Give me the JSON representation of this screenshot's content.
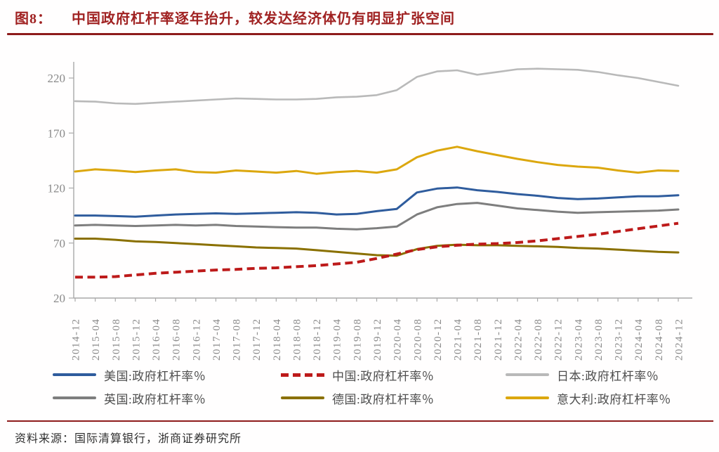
{
  "title": {
    "prefix": "图8：",
    "text": "中国政府杠杆率逐年抬升，较发达经济体仍有明显扩张空间"
  },
  "source": {
    "label": "资料来源：",
    "text": "国际清算银行，浙商证券研究所"
  },
  "colors": {
    "title_red": "#a02222",
    "rule_red": "#8e1b1b",
    "axis_gray": "#a9a9a9",
    "tick_label_gray": "#8a8a8a"
  },
  "chart_data": {
    "type": "line",
    "title": "",
    "xlabel": "",
    "ylabel": "",
    "ylim": [
      20,
      220
    ],
    "yticks": [
      20,
      70,
      120,
      170,
      220
    ],
    "grid": false,
    "legend_position": "bottom",
    "x": [
      "2014-12",
      "2015-04",
      "2015-08",
      "2015-12",
      "2016-04",
      "2016-08",
      "2016-12",
      "2017-04",
      "2017-08",
      "2017-12",
      "2018-04",
      "2018-08",
      "2018-12",
      "2019-04",
      "2019-08",
      "2019-12",
      "2020-04",
      "2020-08",
      "2020-12",
      "2021-04",
      "2021-08",
      "2021-12",
      "2022-04",
      "2022-08",
      "2022-12",
      "2023-04",
      "2023-08",
      "2023-12",
      "2024-04",
      "2024-08",
      "2024-12"
    ],
    "series": [
      {
        "key": "us",
        "name": "美国:政府杠杆率％",
        "color": "#2f5c9d",
        "dashed": false,
        "values": [
          95,
          95,
          94.5,
          94,
          95,
          96,
          96.5,
          97,
          96.5,
          97,
          97.5,
          98,
          97.5,
          96,
          96.5,
          99,
          101,
          116,
          119.5,
          120.5,
          118,
          116.5,
          114.5,
          113,
          111,
          110,
          110.5,
          111.5,
          112.5,
          112.5,
          113.5
        ]
      },
      {
        "key": "china",
        "name": "中国:政府杠杆率％",
        "color": "#bd1a1a",
        "dashed": true,
        "values": [
          39,
          39,
          39.5,
          41,
          42.5,
          43.5,
          44.5,
          45.5,
          46,
          47,
          47.5,
          48.5,
          49.5,
          51,
          52.5,
          56,
          60,
          64,
          66.5,
          68,
          69,
          69.5,
          70.5,
          72,
          74,
          76,
          78,
          80.5,
          83,
          85.5,
          88
        ]
      },
      {
        "key": "japan",
        "name": "日本:政府杠杆率％",
        "color": "#b9b9b9",
        "dashed": false,
        "values": [
          199,
          198.5,
          197,
          196.5,
          197.5,
          198.5,
          199.5,
          200.5,
          201.5,
          201,
          200.5,
          200.5,
          201,
          202.5,
          203,
          204.5,
          209,
          221,
          226,
          227,
          223,
          225.5,
          228,
          228.5,
          228,
          227.5,
          225.5,
          222.5,
          220,
          216.5,
          213
        ]
      },
      {
        "key": "uk",
        "name": "英国:政府杠杆率％",
        "color": "#7e7e7e",
        "dashed": false,
        "values": [
          86,
          86.5,
          86,
          85.5,
          86,
          86.5,
          86,
          86.5,
          85.5,
          85,
          84.5,
          84,
          84,
          83,
          82.5,
          83.5,
          85,
          96,
          102.5,
          105.5,
          106.5,
          104,
          101.5,
          100,
          98.5,
          97.5,
          98,
          98.5,
          99,
          99.5,
          100.5
        ]
      },
      {
        "key": "germany",
        "name": "德国:政府杠杆率％",
        "color": "#8a7000",
        "dashed": false,
        "values": [
          74,
          74,
          73,
          71.5,
          71,
          70,
          69,
          68,
          67,
          66,
          65.5,
          65,
          63.5,
          62,
          60.5,
          59,
          58.5,
          64.5,
          67.5,
          68.5,
          68,
          68,
          67.5,
          67,
          66.5,
          65.5,
          65,
          64,
          63,
          62,
          61.5
        ]
      },
      {
        "key": "italy",
        "name": "意大利:政府杠杆率％",
        "color": "#dca70e",
        "dashed": false,
        "values": [
          135,
          137,
          136,
          134.5,
          136,
          137,
          134.5,
          134,
          136,
          135,
          134,
          135.5,
          133,
          134.5,
          135.5,
          134,
          137,
          148,
          154,
          157.5,
          153.5,
          150,
          146.5,
          143.5,
          141,
          139.5,
          138.5,
          136,
          134,
          136,
          135.5
        ]
      }
    ],
    "draw_order": [
      "japan",
      "italy",
      "uk",
      "us",
      "germany",
      "china"
    ]
  }
}
